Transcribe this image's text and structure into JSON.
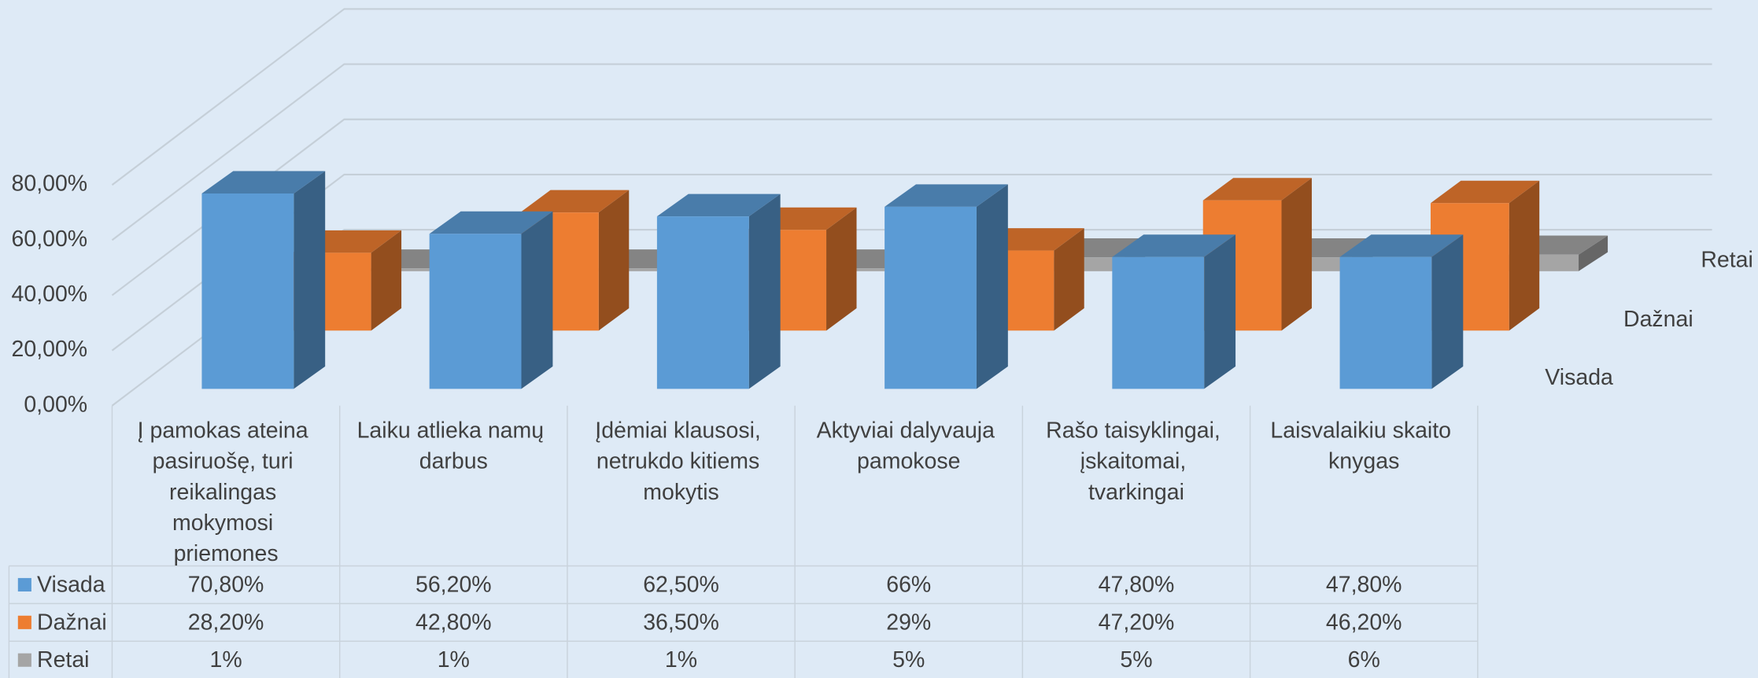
{
  "chart_data": {
    "type": "bar3d",
    "categories": [
      "Į pamokas ateina pasiruošę, turi reikalingas mokymosi priemones",
      "Laiku atlieka namų darbus",
      "Įdėmiai klausosi, netrukdo kitiems mokytis",
      "Aktyviai dalyvauja pamokose",
      "Rašo taisyklingai, įskaitomai, tvarkingai",
      "Laisvalaikiu skaito knygas"
    ],
    "series": [
      {
        "name": "Visada",
        "color": "#5b9bd5",
        "values": [
          70.8,
          56.2,
          62.5,
          66,
          47.8,
          47.8
        ],
        "value_labels": [
          "70,80%",
          "56,20%",
          "62,50%",
          "66%",
          "47,80%",
          "47,80%"
        ]
      },
      {
        "name": "Dažnai",
        "color": "#ed7d31",
        "values": [
          28.2,
          42.8,
          36.5,
          29,
          47.2,
          46.2
        ],
        "value_labels": [
          "28,20%",
          "42,80%",
          "36,50%",
          "29%",
          "47,20%",
          "46,20%"
        ]
      },
      {
        "name": "Retai",
        "color": "#a5a5a5",
        "values": [
          1,
          1,
          1,
          5,
          5,
          6
        ],
        "value_labels": [
          "1%",
          "1%",
          "1%",
          "5%",
          "5%",
          "6%"
        ]
      }
    ],
    "ylim": [
      0,
      80
    ],
    "yticks": [
      {
        "value": 0,
        "label": "0,00%"
      },
      {
        "value": 20,
        "label": "20,00%"
      },
      {
        "value": 40,
        "label": "40,00%"
      },
      {
        "value": 60,
        "label": "60,00%"
      },
      {
        "value": 80,
        "label": "80,00%"
      }
    ],
    "grid": true,
    "data_table": true
  }
}
